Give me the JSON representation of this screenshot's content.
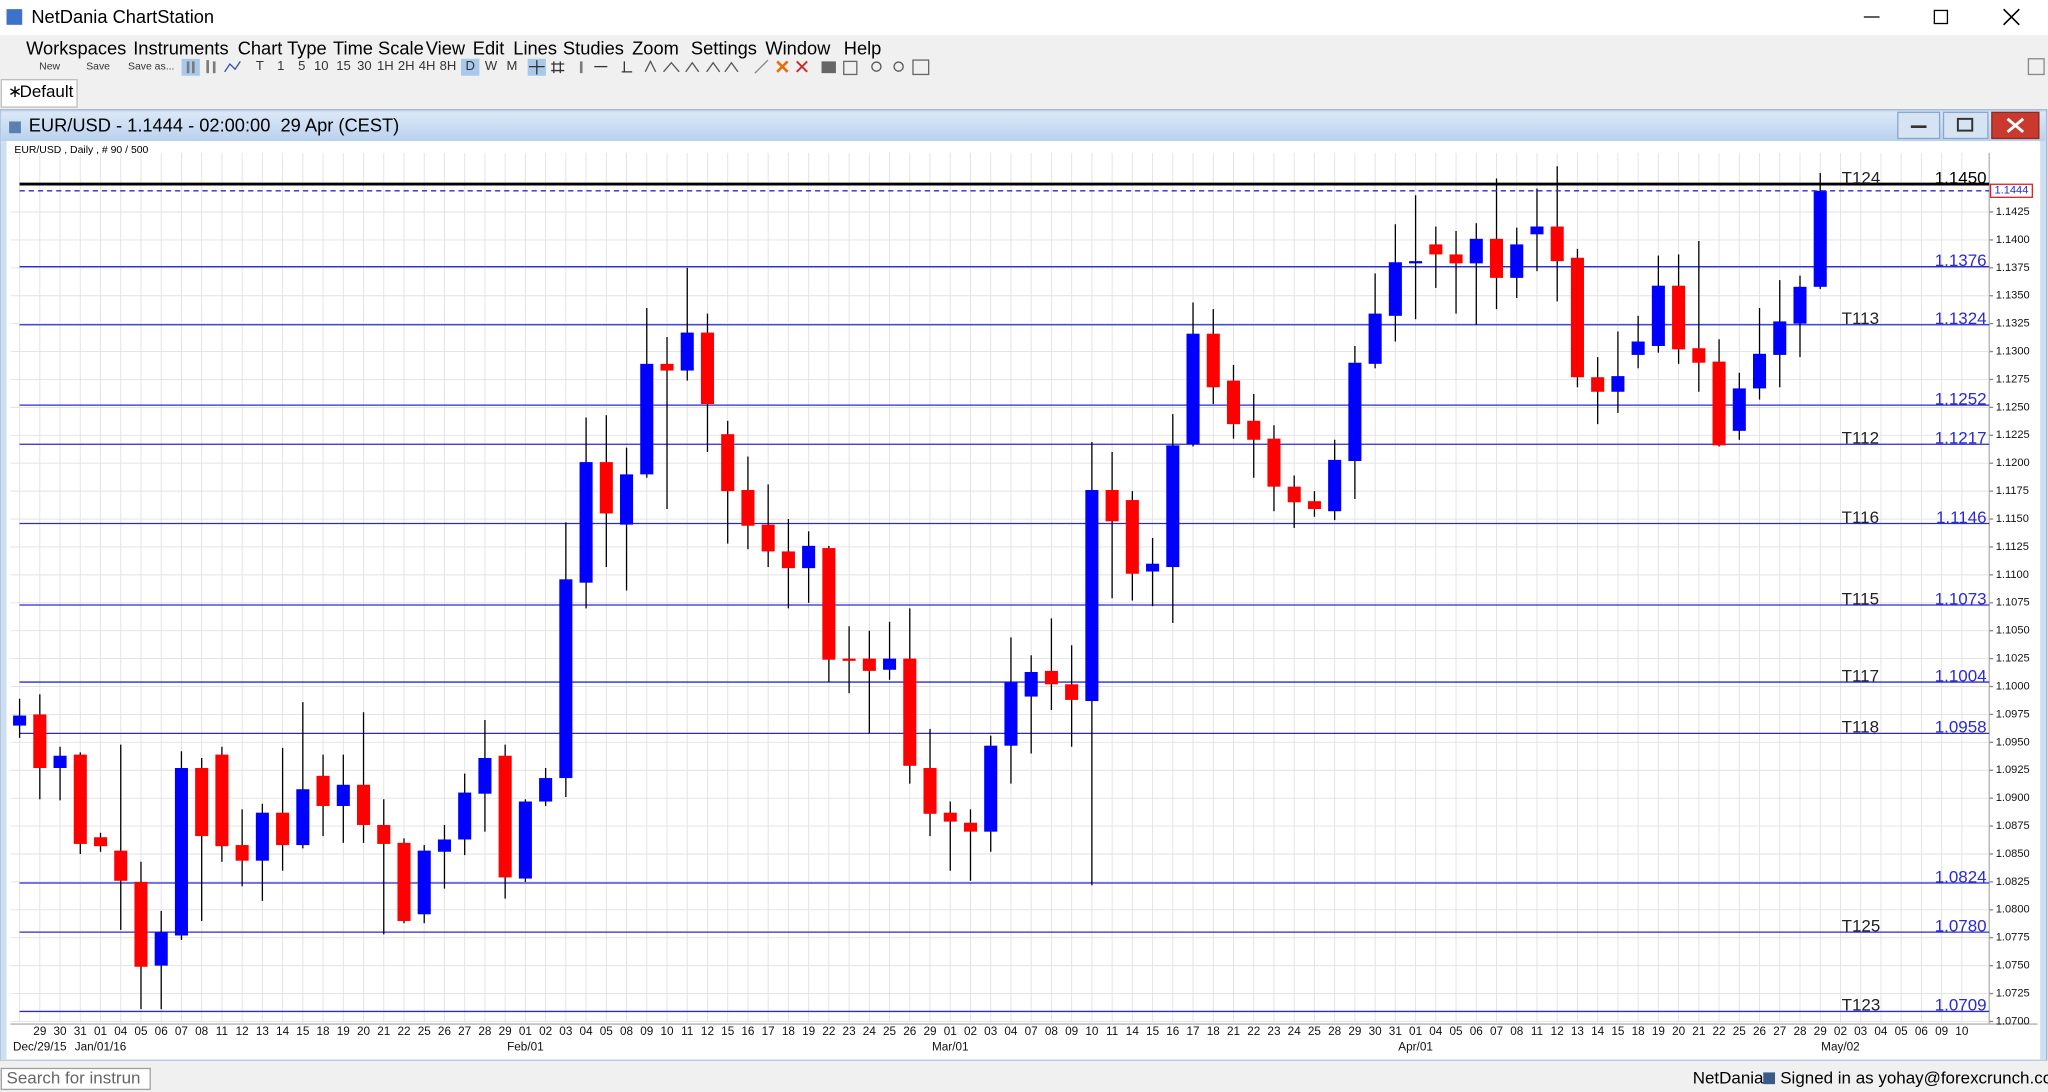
{
  "app": {
    "title": "NetDania ChartStation",
    "menu": [
      "Workspaces",
      "Instruments",
      "Chart Type",
      "Time Scale",
      "View",
      "Edit",
      "Lines",
      "Studies",
      "Zoom",
      "Settings",
      "Window",
      "Help"
    ],
    "toolbar": [
      "New",
      "Save",
      "Save as..."
    ],
    "timescales": [
      "T",
      "1",
      "5",
      "10",
      "15",
      "30",
      "1H",
      "2H",
      "4H",
      "8H",
      "D",
      "W",
      "M"
    ],
    "tab": "Default",
    "chart_window_title": "EUR/USD - 1.1444 - 02:00:00  29 Apr (CEST)",
    "chart_info": "EUR/USD , Daily , # 90 / 500",
    "search_placeholder": "Search for instrun",
    "status_brand": "NetDania",
    "status_user": "Signed in as yohay@forexcrunch.com"
  },
  "chart_data": {
    "type": "candlestick",
    "categories": [
      null,
      "29",
      "30",
      "31",
      "01",
      "04",
      "05",
      "06",
      "07",
      "08",
      "11",
      "12",
      "13",
      "14",
      "15",
      "18",
      "19",
      "20",
      "21",
      "22",
      "25",
      "26",
      "27",
      "28",
      "29",
      "01",
      "02",
      "03",
      "04",
      "05",
      "08",
      "09",
      "10",
      "11",
      "12",
      "15",
      "16",
      "17",
      "18",
      "19",
      "22",
      "23",
      "24",
      "25",
      "26",
      "29",
      "01",
      "02",
      "03",
      "04",
      "07",
      "08",
      "09",
      "10",
      "11",
      "14",
      "15",
      "16",
      "17",
      "18",
      "21",
      "22",
      "23",
      "24",
      "25",
      "28",
      "29",
      "30",
      "31",
      "01",
      "04",
      "05",
      "06",
      "07",
      "08",
      "11",
      "12",
      "13",
      "14",
      "15",
      "18",
      "19",
      "20",
      "21",
      "22",
      "25",
      "26",
      "27",
      "28",
      "29",
      "02",
      "03",
      "04",
      "05",
      "06",
      "09",
      "10"
    ],
    "month_labels": [
      null,
      "Dec/29/15",
      null,
      null,
      "Jan/01/16",
      null,
      null,
      null,
      null,
      null,
      null,
      null,
      null,
      null,
      null,
      null,
      null,
      null,
      null,
      null,
      null,
      null,
      null,
      null,
      null,
      "Feb/01",
      null,
      null,
      null,
      null,
      null,
      null,
      null,
      null,
      null,
      null,
      null,
      null,
      null,
      null,
      null,
      null,
      null,
      null,
      null,
      null,
      "Mar/01",
      null,
      null,
      null,
      null,
      null,
      null,
      null,
      null,
      null,
      null,
      null,
      null,
      null,
      null,
      null,
      null,
      null,
      null,
      null,
      null,
      null,
      null,
      "Apr/01",
      null,
      null,
      null,
      null,
      null,
      null,
      null,
      null,
      null,
      null,
      null,
      null,
      null,
      null,
      null,
      null,
      null,
      null,
      null,
      null,
      "May/02",
      null,
      null,
      null,
      null,
      null,
      null
    ],
    "open": [
      1.0965,
      1.0975,
      1.0927,
      1.0939,
      1.0865,
      1.0853,
      1.0825,
      1.075,
      1.0777,
      1.0927,
      1.0939,
      1.0858,
      1.0844,
      1.0887,
      1.0858,
      1.092,
      1.0893,
      1.0912,
      1.0876,
      1.086,
      1.0796,
      1.0852,
      1.0863,
      1.0904,
      1.0938,
      1.0828,
      1.0897,
      1.0918,
      1.1093,
      1.1201,
      1.1145,
      1.119,
      1.1289,
      1.1283,
      1.1317,
      1.1226,
      1.1176,
      1.1145,
      1.1121,
      1.1106,
      1.1124,
      1.1025,
      1.1025,
      1.1015,
      1.1025,
      1.0927,
      1.0887,
      1.0878,
      1.087,
      1.0947,
      1.0991,
      1.1014,
      1.1002,
      1.0987,
      1.1176,
      1.1167,
      1.1103,
      1.1107,
      1.1217,
      1.1316,
      1.1274,
      1.1238,
      1.1222,
      1.1179,
      1.1166,
      1.1157,
      1.1202,
      1.1289,
      1.1332,
      1.1379,
      1.1396,
      1.1387,
      1.1379,
      1.1401,
      1.1366,
      1.1405,
      1.1412,
      1.1384,
      1.1277,
      1.1264,
      1.1297,
      1.1305,
      1.1359,
      1.1303,
      1.1291,
      1.1229,
      1.1267,
      1.1297,
      1.1325,
      1.1358,
      null,
      null,
      null,
      null,
      null,
      null,
      null
    ],
    "high": [
      1.0989,
      1.0993,
      1.0946,
      1.0941,
      1.0869,
      1.0948,
      1.0843,
      1.0799,
      1.0942,
      1.0936,
      1.0946,
      1.089,
      1.0895,
      1.0945,
      1.0986,
      1.0939,
      1.0939,
      1.0977,
      1.0899,
      1.0864,
      1.0858,
      1.0876,
      1.0922,
      1.097,
      1.0948,
      1.0899,
      1.0927,
      1.1147,
      1.1241,
      1.1243,
      1.1214,
      1.1339,
      1.1313,
      1.1375,
      1.1334,
      1.1238,
      1.1206,
      1.1181,
      1.115,
      1.1139,
      1.1126,
      1.1054,
      1.105,
      1.1058,
      1.107,
      1.0962,
      1.0897,
      1.089,
      1.0956,
      1.1044,
      1.1028,
      1.1061,
      1.1037,
      1.1219,
      1.121,
      1.1175,
      1.1133,
      1.1244,
      1.1344,
      1.1338,
      1.1288,
      1.1262,
      1.1234,
      1.1189,
      1.1175,
      1.1221,
      1.1305,
      1.137,
      1.1414,
      1.144,
      1.1412,
      1.1408,
      1.1415,
      1.1455,
      1.1411,
      1.1446,
      1.1466,
      1.1392,
      1.1295,
      1.1318,
      1.1332,
      1.1386,
      1.1387,
      1.1399,
      1.1311,
      1.1281,
      1.1339,
      1.1364,
      1.1368,
      1.146,
      null,
      null,
      null,
      null,
      null,
      null,
      null
    ],
    "low": [
      1.0954,
      1.0899,
      1.0898,
      1.085,
      1.0852,
      1.0782,
      1.0711,
      1.0711,
      1.0773,
      1.079,
      1.0843,
      1.0821,
      1.0808,
      1.0835,
      1.0855,
      1.0866,
      1.086,
      1.086,
      1.0778,
      1.0788,
      1.0788,
      1.0819,
      1.0849,
      1.087,
      1.081,
      1.0825,
      1.0893,
      1.0901,
      1.107,
      1.1107,
      1.1086,
      1.1187,
      1.1159,
      1.1274,
      1.121,
      1.1128,
      1.1123,
      1.1107,
      1.107,
      1.1075,
      1.1004,
      1.0994,
      1.0958,
      1.1006,
      1.0913,
      1.0866,
      1.0835,
      1.0826,
      1.0852,
      1.0913,
      1.094,
      1.0979,
      1.0946,
      1.0822,
      1.1079,
      1.1077,
      1.1072,
      1.1057,
      1.1215,
      1.1253,
      1.1222,
      1.1187,
      1.1157,
      1.1142,
      1.1152,
      1.1149,
      1.1168,
      1.1285,
      1.1309,
      1.1329,
      1.1357,
      1.1334,
      1.1324,
      1.1338,
      1.1348,
      1.1372,
      1.1345,
      1.1268,
      1.1235,
      1.1245,
      1.1285,
      1.1299,
      1.1289,
      1.1264,
      1.1215,
      1.1221,
      1.1257,
      1.1268,
      1.1295,
      1.1356,
      null,
      null,
      null,
      null,
      null,
      null,
      null
    ],
    "close": [
      1.0974,
      1.0927,
      1.0938,
      1.0859,
      1.0857,
      1.0826,
      1.0749,
      1.078,
      1.0927,
      1.0866,
      1.0857,
      1.0844,
      1.0887,
      1.0858,
      1.0908,
      1.0893,
      1.0912,
      1.0876,
      1.0859,
      1.079,
      1.0853,
      1.0863,
      1.0905,
      1.0936,
      1.0829,
      1.0897,
      1.0918,
      1.1096,
      1.1201,
      1.1155,
      1.119,
      1.1289,
      1.1283,
      1.1317,
      1.1253,
      1.1175,
      1.1144,
      1.1121,
      1.1106,
      1.1126,
      1.1024,
      1.1023,
      1.1014,
      1.1025,
      1.0929,
      1.0886,
      1.0879,
      1.087,
      1.0947,
      1.1004,
      1.1013,
      1.1002,
      1.0988,
      1.1176,
      1.1148,
      1.1101,
      1.111,
      1.1216,
      1.1316,
      1.1268,
      1.1235,
      1.1221,
      1.1179,
      1.1165,
      1.1159,
      1.1203,
      1.129,
      1.1334,
      1.138,
      1.1381,
      1.1387,
      1.1379,
      1.1401,
      1.1366,
      1.1396,
      1.1412,
      1.1381,
      1.1277,
      1.1264,
      1.1278,
      1.1309,
      1.1359,
      1.1302,
      1.129,
      1.1216,
      1.1267,
      1.1298,
      1.1327,
      1.1358,
      1.1444,
      null,
      null,
      null,
      null,
      null,
      null,
      null
    ],
    "up_color": "#0000ff",
    "down_color": "#ff0000",
    "wick_color": "#000000",
    "ylim": [
      1.07,
      1.1478
    ],
    "yticks": [
      {
        "value": 1.07,
        "label": "1.0700"
      },
      1.0725,
      {
        "value": 1.075,
        "label": "1.0750"
      },
      1.0775,
      {
        "value": 1.08,
        "label": "1.0800"
      },
      1.0825,
      {
        "value": 1.085,
        "label": "1.0850"
      },
      1.0875,
      {
        "value": 1.09,
        "label": "1.0900"
      },
      1.0925,
      {
        "value": 1.095,
        "label": "1.0950"
      },
      1.0975,
      {
        "value": 1.1,
        "label": "1.1000"
      },
      1.1025,
      {
        "value": 1.105,
        "label": "1.1050"
      },
      1.1075,
      {
        "value": 1.11,
        "label": "1.1100"
      },
      1.1125,
      {
        "value": 1.115,
        "label": "1.1150"
      },
      1.1175,
      {
        "value": 1.12,
        "label": "1.1200"
      },
      1.1225,
      {
        "value": 1.125,
        "label": "1.1250"
      },
      1.1275,
      {
        "value": 1.13,
        "label": "1.1300"
      },
      1.1325,
      {
        "value": 1.135,
        "label": "1.1350"
      },
      1.1375,
      {
        "value": 1.14,
        "label": "1.1400"
      },
      1.1425
    ],
    "grid": true,
    "levels": [
      {
        "name": "T124",
        "price": {
          "value": 1.145,
          "label": "1.1450"
        },
        "color": "#000000"
      },
      {
        "price": 1.1376,
        "color": "#2a2ad6"
      },
      {
        "name": "T113",
        "price": 1.1324,
        "color": "#2a2ad6"
      },
      {
        "price": 1.1252,
        "color": "#2a2ad6"
      },
      {
        "name": "T112",
        "price": 1.1217,
        "color": "#2a2ad6"
      },
      {
        "name": "T116",
        "price": 1.1146,
        "color": "#2a2ad6"
      },
      {
        "name": "T115",
        "price": 1.1073,
        "color": "#2a2ad6"
      },
      {
        "name": "T117",
        "price": 1.1004,
        "color": "#2a2ad6"
      },
      {
        "name": "T118",
        "price": 1.0958,
        "color": "#2a2ad6"
      },
      {
        "price": 1.0824,
        "color": "#2a2ad6"
      },
      {
        "name": "T125",
        "price": {
          "value": 1.078,
          "label": "1.0780"
        },
        "color": "#2a2ad6"
      },
      {
        "name": "T123",
        "price": 1.0709,
        "color": "#2a2ad6"
      }
    ],
    "last_price": 1.1444
  }
}
